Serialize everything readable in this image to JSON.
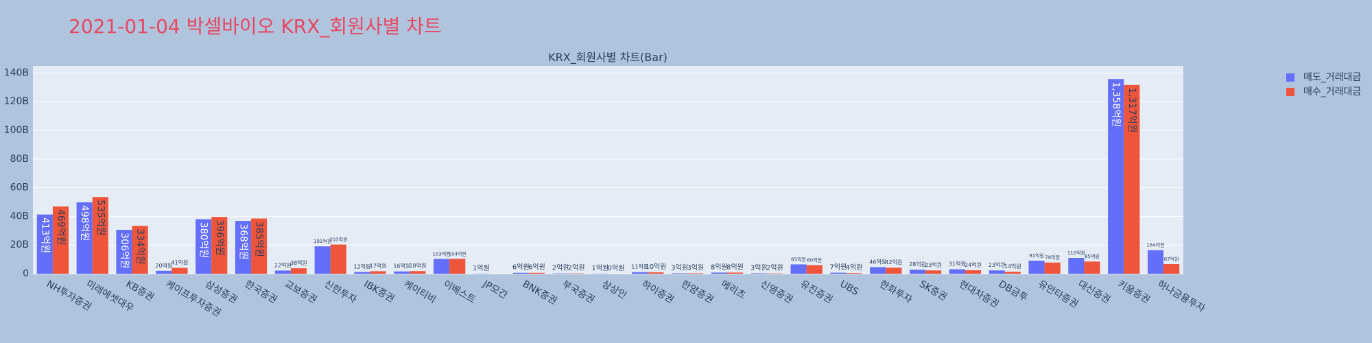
{
  "chart_data": {
    "type": "bar",
    "title": "2021-01-04 박셀바이오 KRX_회원사별 차트",
    "subtitle": "KRX_회원사별 차트(Bar)",
    "categories": [
      "NH투자증권",
      "미래에셋대우",
      "KB증권",
      "케이프투자증권",
      "삼성증권",
      "한국증권",
      "교보증권",
      "신한투자",
      "IBK증권",
      "케이티비",
      "이베스트",
      "JP모간",
      "BNK증권",
      "부국증권",
      "상상인",
      "하이증권",
      "한양증권",
      "메리츠",
      "신영증권",
      "유진증권",
      "UBS",
      "한화투자",
      "SK증권",
      "현대차증권",
      "DB금투",
      "유안타증권",
      "대신증권",
      "키움증권",
      "하나금융투자"
    ],
    "series": [
      {
        "name": "매도_거래대금",
        "color": "#636efa",
        "values": [
          41300000000,
          49800000000,
          30600000000,
          2000000000,
          38000000000,
          36800000000,
          2200000000,
          19100000000,
          1200000000,
          1600000000,
          10300000000,
          100000000,
          600000000,
          200000000,
          100000000,
          1100000000,
          300000000,
          800000000,
          300000000,
          6500000000,
          700000000,
          4600000000,
          2800000000,
          3100000000,
          2300000000,
          9100000000,
          11000000000,
          135800000000,
          16400000000
        ],
        "value_labels": [
          "413억원",
          "498억원",
          "306억원",
          "20억원",
          "380억원",
          "368억원",
          "22억원",
          "191억원",
          "12억원",
          "16억원",
          "103억원",
          "1억원",
          "6억원",
          "2억원",
          "1억원",
          "11억원",
          "3억원",
          "8억원",
          "3억원",
          "65억원",
          "7억원",
          "46억원",
          "28억원",
          "31억원",
          "23억원",
          "91억원",
          "110억원",
          "1,358억원",
          "164억원"
        ]
      },
      {
        "name": "매수_거래대금",
        "color": "#EF553B",
        "values": [
          46900000000,
          53500000000,
          33400000000,
          4100000000,
          39600000000,
          38500000000,
          3800000000,
          20300000000,
          1700000000,
          1800000000,
          10400000000,
          null,
          600000000,
          200000000,
          0,
          1000000000,
          300000000,
          800000000,
          200000000,
          6000000000,
          400000000,
          4200000000,
          2300000000,
          2400000000,
          1400000000,
          7800000000,
          8500000000,
          131700000000,
          6700000000
        ],
        "value_labels": [
          "469억원",
          "535억원",
          "334억원",
          "41억원",
          "396억원",
          "385억원",
          "38억원",
          "203억원",
          "17억원",
          "18억원",
          "104억원",
          null,
          "6억원",
          "2억원",
          "0억원",
          "10억원",
          "3억원",
          "8억원",
          "2억원",
          "60억원",
          "4억원",
          "42억원",
          "23억원",
          "24억원",
          "14억원",
          "78억원",
          "85억원",
          "1,317억원",
          "67억원"
        ]
      }
    ],
    "ylim": [
      0,
      145000000000
    ],
    "yticks": [
      0,
      {
        "value": 20000000000,
        "label": "20B"
      },
      {
        "value": 40000000000,
        "label": "40B"
      },
      {
        "value": 60000000000,
        "label": "60B"
      },
      {
        "value": 80000000000,
        "label": "80B"
      },
      {
        "value": 100000000000,
        "label": "100B"
      },
      {
        "value": 120000000000,
        "label": "120B"
      },
      {
        "value": 140000000000,
        "label": "140B"
      }
    ],
    "grid": true
  }
}
